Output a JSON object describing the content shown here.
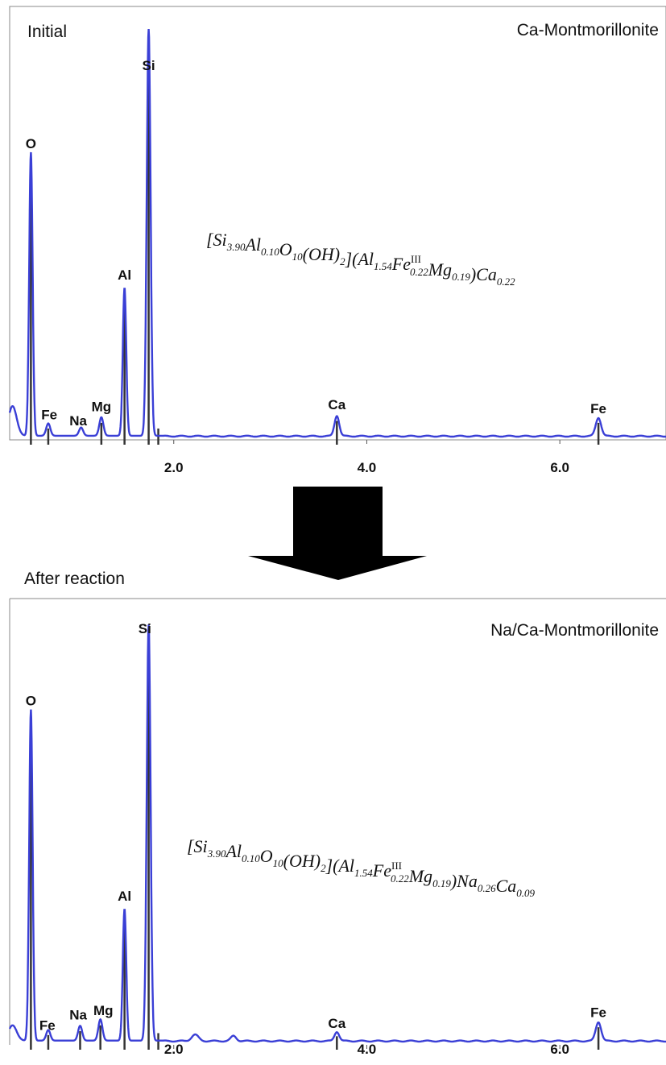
{
  "chart_data": [
    {
      "type": "line",
      "title": "Ca-Montmorillonite",
      "corner_label": "Initial",
      "xlim": [
        0.3,
        7.1
      ],
      "xticks": [
        "2.0",
        "4.0",
        "6.0"
      ],
      "xtick_values": [
        2.0,
        4.0,
        6.0
      ],
      "ylim": [
        0,
        100
      ],
      "formula": {
        "parts": [
          {
            "t": "[Si"
          },
          {
            "s": "3.90"
          },
          {
            "t": "Al"
          },
          {
            "s": "0.10"
          },
          {
            "t": "O"
          },
          {
            "s": "10"
          },
          {
            "t": "(OH)"
          },
          {
            "s": "2"
          },
          {
            "t": "](Al"
          },
          {
            "s": "1.54"
          },
          {
            "t": "Fe"
          },
          {
            "sup": "III",
            "s": "0.22"
          },
          {
            "t": "Mg"
          },
          {
            "s": "0.19"
          },
          {
            "t": ")Ca"
          },
          {
            "s": "0.22"
          }
        ]
      },
      "peaks": [
        {
          "element": "O",
          "x": 0.52,
          "height": 69,
          "width": 0.025
        },
        {
          "element": "Fe",
          "x": 0.7,
          "height": 3,
          "width": 0.03
        },
        {
          "element": "Na",
          "x": 1.04,
          "height": 2,
          "width": 0.03
        },
        {
          "element": "Mg",
          "x": 1.25,
          "height": 4.5,
          "width": 0.03
        },
        {
          "element": "Al",
          "x": 1.49,
          "height": 36,
          "width": 0.025
        },
        {
          "element": "Si",
          "x": 1.74,
          "height": 99,
          "width": 0.028
        },
        {
          "element": "Ca",
          "x": 3.69,
          "height": 5,
          "width": 0.035
        },
        {
          "element": "Fe",
          "x": 6.4,
          "height": 4.5,
          "width": 0.04
        }
      ],
      "markers": [
        {
          "element": "O",
          "x": 0.52
        },
        {
          "element": "Fe",
          "x": 0.7
        },
        {
          "element": "Mg",
          "x": 1.25
        },
        {
          "element": "Al",
          "x": 1.49
        },
        {
          "element": "Si",
          "x": 1.74
        },
        {
          "element": "",
          "x": 1.84
        },
        {
          "element": "Ca",
          "x": 3.69
        },
        {
          "element": "Fe",
          "x": 6.4
        }
      ],
      "labels": [
        {
          "text": "O",
          "x": 0.52,
          "y": 71
        },
        {
          "text": "Fe",
          "x": 0.71,
          "y": 5
        },
        {
          "text": "Na",
          "x": 1.01,
          "y": 3.5
        },
        {
          "text": "Mg",
          "x": 1.25,
          "y": 7
        },
        {
          "text": "Al",
          "x": 1.49,
          "y": 39
        },
        {
          "text": "Si",
          "x": 1.74,
          "y": 90
        },
        {
          "text": "Ca",
          "x": 3.69,
          "y": 7.5
        },
        {
          "text": "Fe",
          "x": 6.4,
          "y": 6.5
        }
      ]
    },
    {
      "type": "line",
      "title": "Na/Ca-Montmorillonite",
      "corner_label": "After reaction",
      "xlim": [
        0.3,
        7.1
      ],
      "xticks": [
        "2.0",
        "4.0",
        "6.0"
      ],
      "xtick_values": [
        2.0,
        4.0,
        6.0
      ],
      "ylim": [
        0,
        100
      ],
      "formula": {
        "parts": [
          {
            "t": "[Si"
          },
          {
            "s": "3.90"
          },
          {
            "t": "Al"
          },
          {
            "s": "0.10"
          },
          {
            "t": "O"
          },
          {
            "s": "10"
          },
          {
            "t": "(OH)"
          },
          {
            "s": "2"
          },
          {
            "t": "](Al"
          },
          {
            "s": "1.54"
          },
          {
            "t": "Fe"
          },
          {
            "sup": "III",
            "s": "0.22"
          },
          {
            "t": "Mg"
          },
          {
            "s": "0.19"
          },
          {
            "t": ")Na"
          },
          {
            "s": "0.26"
          },
          {
            "t": "Ca"
          },
          {
            "s": "0.09"
          }
        ]
      },
      "peaks": [
        {
          "element": "O",
          "x": 0.52,
          "height": 78,
          "width": 0.025
        },
        {
          "element": "Fe",
          "x": 0.7,
          "height": 2.5,
          "width": 0.03
        },
        {
          "element": "Na",
          "x": 1.03,
          "height": 3.5,
          "width": 0.03
        },
        {
          "element": "Mg",
          "x": 1.24,
          "height": 5,
          "width": 0.03
        },
        {
          "element": "Al",
          "x": 1.49,
          "height": 31,
          "width": 0.025
        },
        {
          "element": "Si",
          "x": 1.74,
          "height": 98,
          "width": 0.028
        },
        {
          "element": "",
          "x": 2.22,
          "height": 1.5,
          "width": 0.05
        },
        {
          "element": "",
          "x": 2.62,
          "height": 1.2,
          "width": 0.04
        },
        {
          "element": "Ca",
          "x": 3.69,
          "height": 2.2,
          "width": 0.035
        },
        {
          "element": "Fe",
          "x": 6.4,
          "height": 4.5,
          "width": 0.04
        }
      ],
      "markers": [
        {
          "element": "O",
          "x": 0.52
        },
        {
          "element": "Fe",
          "x": 0.7
        },
        {
          "element": "Na",
          "x": 1.03
        },
        {
          "element": "Mg",
          "x": 1.24
        },
        {
          "element": "Al",
          "x": 1.49
        },
        {
          "element": "Si",
          "x": 1.74
        },
        {
          "element": "",
          "x": 1.84
        },
        {
          "element": "Ca",
          "x": 3.69
        },
        {
          "element": "Fe",
          "x": 6.4
        }
      ],
      "labels": [
        {
          "text": "O",
          "x": 0.52,
          "y": 80
        },
        {
          "text": "Fe",
          "x": 0.69,
          "y": 3.5
        },
        {
          "text": "Na",
          "x": 1.01,
          "y": 6
        },
        {
          "text": "Mg",
          "x": 1.27,
          "y": 7
        },
        {
          "text": "Al",
          "x": 1.49,
          "y": 34
        },
        {
          "text": "Si",
          "x": 1.7,
          "y": 97
        },
        {
          "text": "Ca",
          "x": 3.69,
          "y": 4
        },
        {
          "text": "Fe",
          "x": 6.4,
          "y": 6.5
        }
      ]
    }
  ],
  "colors": {
    "spectrum": "#3a3fd6",
    "marker": "#333333",
    "frame": "#888888",
    "arrow": "#000000"
  }
}
